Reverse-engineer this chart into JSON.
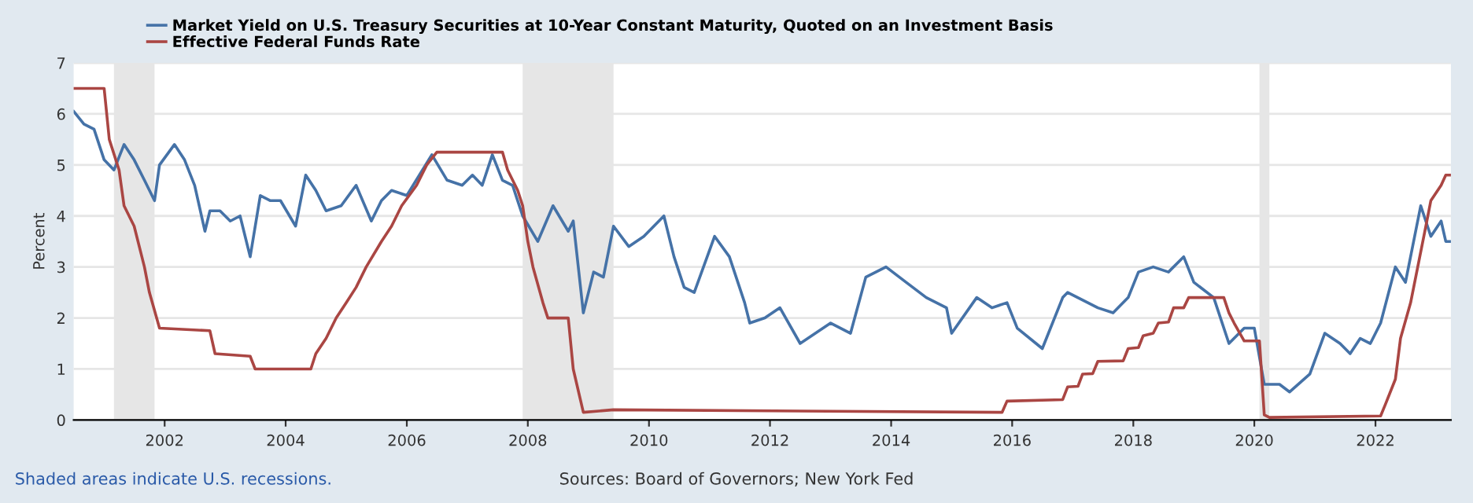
{
  "chart_data": {
    "type": "line",
    "ylabel": "Percent",
    "xlim": [
      "2000-07",
      "2023-04"
    ],
    "ylim": [
      0,
      7
    ],
    "yticks": [
      0,
      1,
      2,
      3,
      4,
      5,
      6,
      7
    ],
    "xticks": [
      {
        "value": "2002",
        "label": "2002"
      },
      {
        "value": "2004",
        "label": "2004"
      },
      {
        "value": "2006",
        "label": "2006"
      },
      {
        "value": "2008",
        "label": "2008"
      },
      {
        "value": "2010",
        "label": "2010"
      },
      {
        "value": "2012",
        "label": "2012"
      },
      {
        "value": "2014",
        "label": "2014"
      },
      {
        "value": "2016",
        "label": "2016"
      },
      {
        "value": "2018",
        "label": "2018"
      },
      {
        "value": "2020",
        "label": "2020"
      },
      {
        "value": "2022",
        "label": "2022"
      }
    ],
    "grid": "y",
    "legend": "top left",
    "line_style": "solid",
    "bands": [
      {
        "axis": "x",
        "from": "2001-03",
        "to": "2001-11",
        "color": "#e6e6e6"
      },
      {
        "axis": "x",
        "from": "2007-12",
        "to": "2009-06",
        "color": "#e6e6e6"
      },
      {
        "axis": "x",
        "from": "2020-02",
        "to": "2020-04",
        "color": "#e6e6e6"
      }
    ],
    "annotations": [
      "Shaded areas indicate U.S. recessions.",
      "Sources: Board of Governors; New York Fed"
    ],
    "series": [
      {
        "name": "Market Yield on U.S. Treasury Securities at 10-Year Constant Maturity, Quoted on an Investment Basis",
        "color": "#4572a7",
        "x": [
          "2000-07",
          "2000-09",
          "2000-11",
          "2001-01",
          "2001-03",
          "2001-05",
          "2001-07",
          "2001-09",
          "2001-11",
          "2001-12",
          "2002-03",
          "2002-05",
          "2002-07",
          "2002-09",
          "2002-10",
          "2002-12",
          "2003-02",
          "2003-04",
          "2003-06",
          "2003-08",
          "2003-10",
          "2003-12",
          "2004-03",
          "2004-05",
          "2004-07",
          "2004-09",
          "2004-12",
          "2005-03",
          "2005-06",
          "2005-08",
          "2005-10",
          "2006-01",
          "2006-06",
          "2006-09",
          "2006-12",
          "2007-02",
          "2007-04",
          "2007-06",
          "2007-08",
          "2007-10",
          "2007-12",
          "2008-03",
          "2008-06",
          "2008-09",
          "2008-10",
          "2008-12",
          "2009-02",
          "2009-04",
          "2009-06",
          "2009-09",
          "2009-12",
          "2010-04",
          "2010-06",
          "2010-08",
          "2010-10",
          "2011-02",
          "2011-05",
          "2011-08",
          "2011-09",
          "2011-12",
          "2012-03",
          "2012-07",
          "2012-10",
          "2013-01",
          "2013-05",
          "2013-08",
          "2013-12",
          "2014-04",
          "2014-08",
          "2014-12",
          "2015-01",
          "2015-06",
          "2015-09",
          "2015-12",
          "2016-02",
          "2016-07",
          "2016-11",
          "2016-12",
          "2017-06",
          "2017-09",
          "2017-12",
          "2018-02",
          "2018-05",
          "2018-08",
          "2018-11",
          "2019-01",
          "2019-05",
          "2019-08",
          "2019-11",
          "2020-01",
          "2020-03",
          "2020-06",
          "2020-08",
          "2020-12",
          "2021-03",
          "2021-06",
          "2021-08",
          "2021-10",
          "2021-12",
          "2022-02",
          "2022-05",
          "2022-07",
          "2022-10",
          "2022-12",
          "2023-02",
          "2023-03",
          "2023-04"
        ],
        "values": [
          6.05,
          5.8,
          5.7,
          5.1,
          4.9,
          5.4,
          5.1,
          4.7,
          4.3,
          5.0,
          5.4,
          5.1,
          4.6,
          3.7,
          4.1,
          4.1,
          3.9,
          4.0,
          3.2,
          4.4,
          4.3,
          4.3,
          3.8,
          4.8,
          4.5,
          4.1,
          4.2,
          4.6,
          3.9,
          4.3,
          4.5,
          4.4,
          5.2,
          4.7,
          4.6,
          4.8,
          4.6,
          5.2,
          4.7,
          4.6,
          4.0,
          3.5,
          4.2,
          3.7,
          3.9,
          2.1,
          2.9,
          2.8,
          3.8,
          3.4,
          3.6,
          4.0,
          3.2,
          2.6,
          2.5,
          3.6,
          3.2,
          2.3,
          1.9,
          2.0,
          2.2,
          1.5,
          1.7,
          1.9,
          1.7,
          2.8,
          3.0,
          2.7,
          2.4,
          2.2,
          1.7,
          2.4,
          2.2,
          2.3,
          1.8,
          1.4,
          2.4,
          2.5,
          2.2,
          2.1,
          2.4,
          2.9,
          3.0,
          2.9,
          3.2,
          2.7,
          2.4,
          1.5,
          1.8,
          1.8,
          0.7,
          0.7,
          0.55,
          0.9,
          1.7,
          1.5,
          1.3,
          1.6,
          1.5,
          1.9,
          3.0,
          2.7,
          4.2,
          3.6,
          3.9,
          3.5,
          3.5
        ]
      },
      {
        "name": "Effective Federal Funds Rate",
        "color": "#aa4643",
        "x": [
          "2000-07",
          "2001-01",
          "2001-02",
          "2001-04",
          "2001-05",
          "2001-07",
          "2001-09",
          "2001-10",
          "2001-12",
          "2002-10",
          "2002-11",
          "2003-06",
          "2003-07",
          "2004-06",
          "2004-07",
          "2004-09",
          "2004-11",
          "2005-01",
          "2005-03",
          "2005-05",
          "2005-08",
          "2005-10",
          "2005-12",
          "2006-03",
          "2006-05",
          "2006-07",
          "2007-08",
          "2007-09",
          "2007-11",
          "2007-12",
          "2008-01",
          "2008-02",
          "2008-04",
          "2008-05",
          "2008-09",
          "2008-10",
          "2008-12",
          "2009-06",
          "2015-11",
          "2015-12",
          "2016-11",
          "2016-12",
          "2017-02",
          "2017-03",
          "2017-05",
          "2017-06",
          "2017-11",
          "2017-12",
          "2018-02",
          "2018-03",
          "2018-05",
          "2018-06",
          "2018-08",
          "2018-09",
          "2018-11",
          "2018-12",
          "2019-07",
          "2019-08",
          "2019-09",
          "2019-11",
          "2020-02",
          "2020-03",
          "2020-04",
          "2022-02",
          "2022-03",
          "2022-05",
          "2022-06",
          "2022-08",
          "2022-11",
          "2022-12",
          "2023-02",
          "2023-03",
          "2023-04"
        ],
        "values": [
          6.5,
          6.5,
          5.5,
          4.9,
          4.2,
          3.8,
          3.0,
          2.5,
          1.8,
          1.75,
          1.3,
          1.25,
          1.0,
          1.0,
          1.3,
          1.6,
          2.0,
          2.3,
          2.6,
          3.0,
          3.5,
          3.8,
          4.2,
          4.6,
          5.0,
          5.25,
          5.25,
          4.9,
          4.5,
          4.2,
          3.5,
          3.0,
          2.3,
          2.0,
          2.0,
          1.0,
          0.15,
          0.2,
          0.15,
          0.37,
          0.4,
          0.65,
          0.66,
          0.9,
          0.91,
          1.15,
          1.16,
          1.4,
          1.42,
          1.65,
          1.7,
          1.9,
          1.92,
          2.2,
          2.2,
          2.4,
          2.4,
          2.1,
          1.9,
          1.55,
          1.55,
          0.1,
          0.05,
          0.08,
          0.3,
          0.8,
          1.6,
          2.3,
          3.8,
          4.3,
          4.6,
          4.8,
          4.8
        ]
      }
    ]
  }
}
